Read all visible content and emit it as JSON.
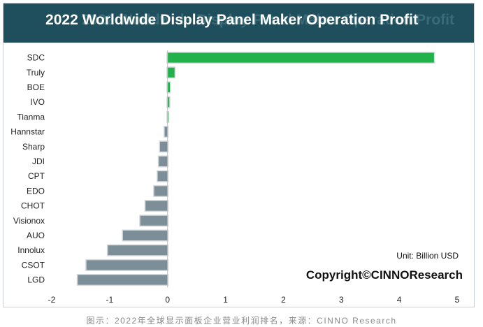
{
  "chart_data": {
    "type": "bar",
    "orientation": "horizontal",
    "title": "2022 Worldwide Display Panel Maker Operation Profit",
    "categories": [
      "SDC",
      "Truly",
      "BOE",
      "IVO",
      "Tianma",
      "Hannstar",
      "Sharp",
      "JDI",
      "CPT",
      "EDO",
      "CHOT",
      "Visionox",
      "AUO",
      "Innolux",
      "CSOT",
      "LGD"
    ],
    "values": [
      4.6,
      0.12,
      0.04,
      0.03,
      0.01,
      -0.05,
      -0.13,
      -0.15,
      -0.17,
      -0.23,
      -0.38,
      -0.47,
      -0.77,
      -1.03,
      -1.4,
      -1.55
    ],
    "xlim": [
      -2,
      5
    ],
    "xticks": [
      -2,
      -1,
      0,
      1,
      2,
      3,
      4,
      5
    ],
    "unit": "Unit: Billion USD",
    "positive_color": "#22b24c",
    "negative_color": "#7c8f99",
    "legend": "none",
    "grid": false
  },
  "copyright": "Copyright©CINNOResearch",
  "caption": "图示：2022年全球显示面板企业营业利润排名，来源：CINNO Research"
}
